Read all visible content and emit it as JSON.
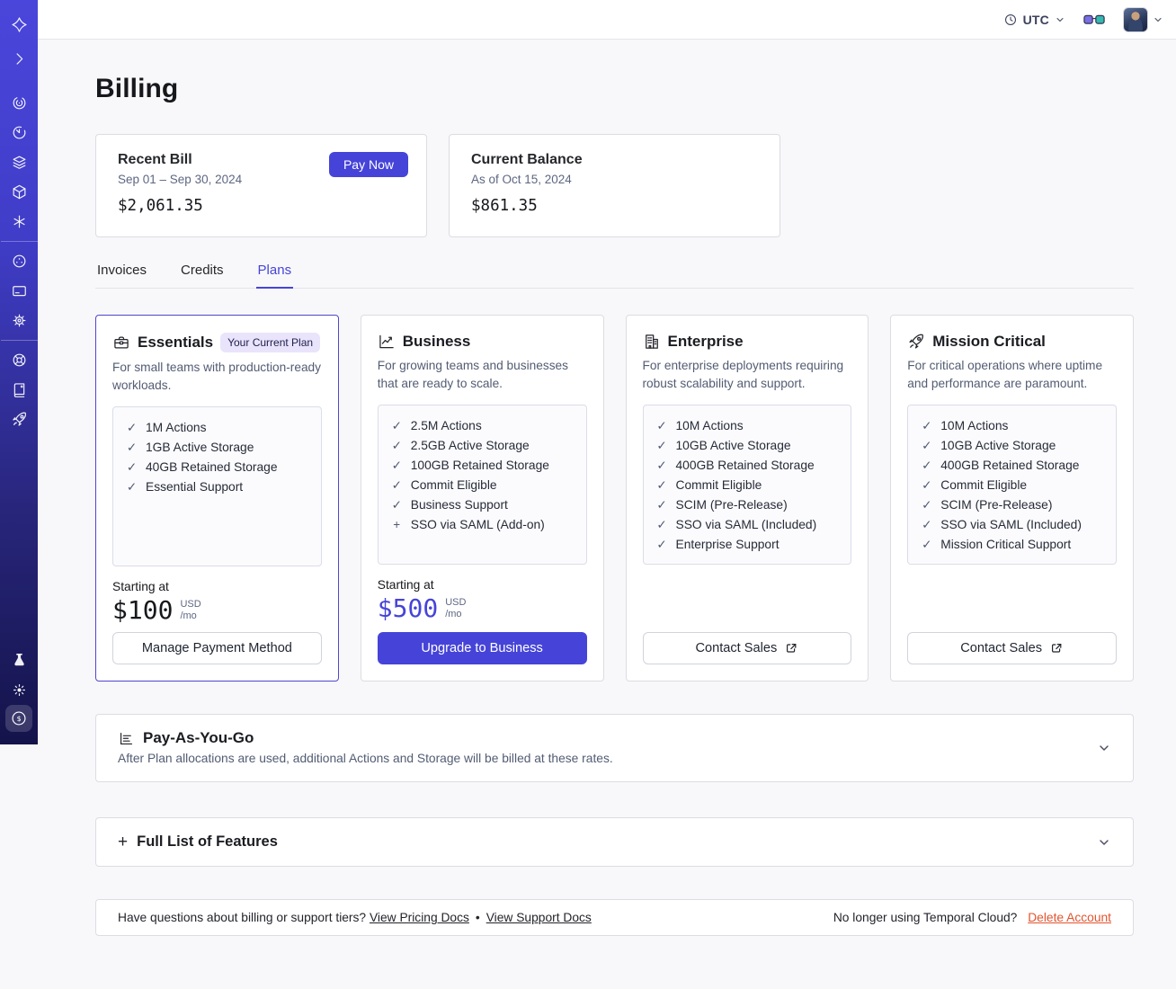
{
  "topbar": {
    "timezone": "UTC"
  },
  "sidebar": {
    "icons": [
      "temporal-logo",
      "expand",
      "namespaces-spiral",
      "schedules-timer",
      "stack-layers",
      "deployments-cube",
      "nexus-asterisk",
      "usage-meter",
      "invoices-card",
      "settings-gear",
      "support-lifebuoy",
      "docs-book",
      "getting-started-rocket",
      "labs-flask",
      "theme-sun",
      "billing-dollar"
    ]
  },
  "page": {
    "title": "Billing"
  },
  "summary": {
    "recent_bill": {
      "title": "Recent Bill",
      "period": "Sep 01 – Sep 30, 2024",
      "amount": "$2,061.35",
      "pay_now": "Pay Now"
    },
    "current_balance": {
      "title": "Current Balance",
      "as_of": "As of Oct 15, 2024",
      "amount": "$861.35"
    }
  },
  "tabs": [
    {
      "label": "Invoices"
    },
    {
      "label": "Credits"
    },
    {
      "label": "Plans"
    }
  ],
  "plans": {
    "cards": [
      {
        "name": "Essentials",
        "badge": "Your Current Plan",
        "description": "For small teams with production-ready workloads.",
        "features": [
          {
            "icon": "✓",
            "label": "1M Actions"
          },
          {
            "icon": "✓",
            "label": "1GB Active Storage"
          },
          {
            "icon": "✓",
            "label": "40GB Retained Storage"
          },
          {
            "icon": "✓",
            "label": "Essential Support"
          }
        ],
        "starting_at": "Starting at",
        "price": "$100",
        "currency": "USD",
        "per": "/mo",
        "button_label": "Manage Payment Method"
      },
      {
        "name": "Business",
        "description": "For growing teams and businesses that are ready to scale.",
        "features": [
          {
            "icon": "✓",
            "label": "2.5M Actions"
          },
          {
            "icon": "✓",
            "label": "2.5GB Active Storage"
          },
          {
            "icon": "✓",
            "label": "100GB Retained Storage"
          },
          {
            "icon": "✓",
            "label": "Commit Eligible"
          },
          {
            "icon": "✓",
            "label": "Business Support"
          },
          {
            "icon": "+",
            "label": "SSO via SAML (Add-on)"
          }
        ],
        "starting_at": "Starting at",
        "price": "$500",
        "currency": "USD",
        "per": "/mo",
        "button_label": "Upgrade to Business"
      },
      {
        "name": "Enterprise",
        "description": "For enterprise deployments requiring robust scalability and support.",
        "features": [
          {
            "icon": "✓",
            "label": "10M Actions"
          },
          {
            "icon": "✓",
            "label": "10GB Active Storage"
          },
          {
            "icon": "✓",
            "label": "400GB Retained Storage"
          },
          {
            "icon": "✓",
            "label": "Commit Eligible"
          },
          {
            "icon": "✓",
            "label": "SCIM (Pre-Release)"
          },
          {
            "icon": "✓",
            "label": "SSO via SAML (Included)"
          },
          {
            "icon": "✓",
            "label": "Enterprise Support"
          }
        ],
        "button_label": "Contact Sales"
      },
      {
        "name": "Mission Critical",
        "description": "For critical operations where uptime and performance are paramount.",
        "features": [
          {
            "icon": "✓",
            "label": "10M Actions"
          },
          {
            "icon": "✓",
            "label": "10GB Active Storage"
          },
          {
            "icon": "✓",
            "label": "400GB Retained Storage"
          },
          {
            "icon": "✓",
            "label": "Commit Eligible"
          },
          {
            "icon": "✓",
            "label": "SCIM (Pre-Release)"
          },
          {
            "icon": "✓",
            "label": "SSO via SAML (Included)"
          },
          {
            "icon": "✓",
            "label": "Mission Critical Support"
          }
        ],
        "button_label": "Contact Sales"
      }
    ]
  },
  "pay_as_you_go": {
    "title": "Pay-As-You-Go",
    "description": "After Plan allocations are used, additional Actions and Storage will be billed at these rates."
  },
  "full_features": {
    "plus": "+",
    "title": "Full List of Features"
  },
  "footer": {
    "question": "Have questions about billing or support tiers?",
    "pricing_link": "View Pricing Docs",
    "separator": "•",
    "support_link": "View Support Docs",
    "delete_prompt": "No longer using Temporal Cloud?",
    "delete_link": "Delete Account"
  },
  "icons": {
    "dollar": "$"
  },
  "colors": {
    "accent": "#4644d8",
    "sidebar_top": "#4a46db",
    "sidebar_bottom": "#14134a",
    "danger": "#e2542f"
  }
}
